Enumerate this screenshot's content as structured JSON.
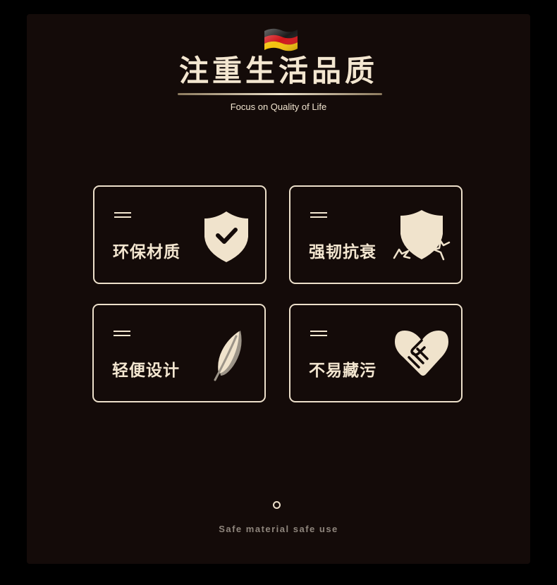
{
  "header": {
    "flag_icon": "germany-flag-icon",
    "title": "注重生活品质",
    "subtitle": "Focus on Quality of Life"
  },
  "features": [
    {
      "label": "环保材质",
      "icon": "shield-check-icon"
    },
    {
      "label": "强韧抗衰",
      "icon": "shield-sparkle-icon"
    },
    {
      "label": "轻便设计",
      "icon": "feather-icon"
    },
    {
      "label": "不易藏污",
      "icon": "handshake-icon"
    }
  ],
  "footer": {
    "indicator_icon": "circle-icon",
    "tagline": "Safe material safe use"
  },
  "colors": {
    "background": "#140b09",
    "accent": "#f3e6d0"
  }
}
